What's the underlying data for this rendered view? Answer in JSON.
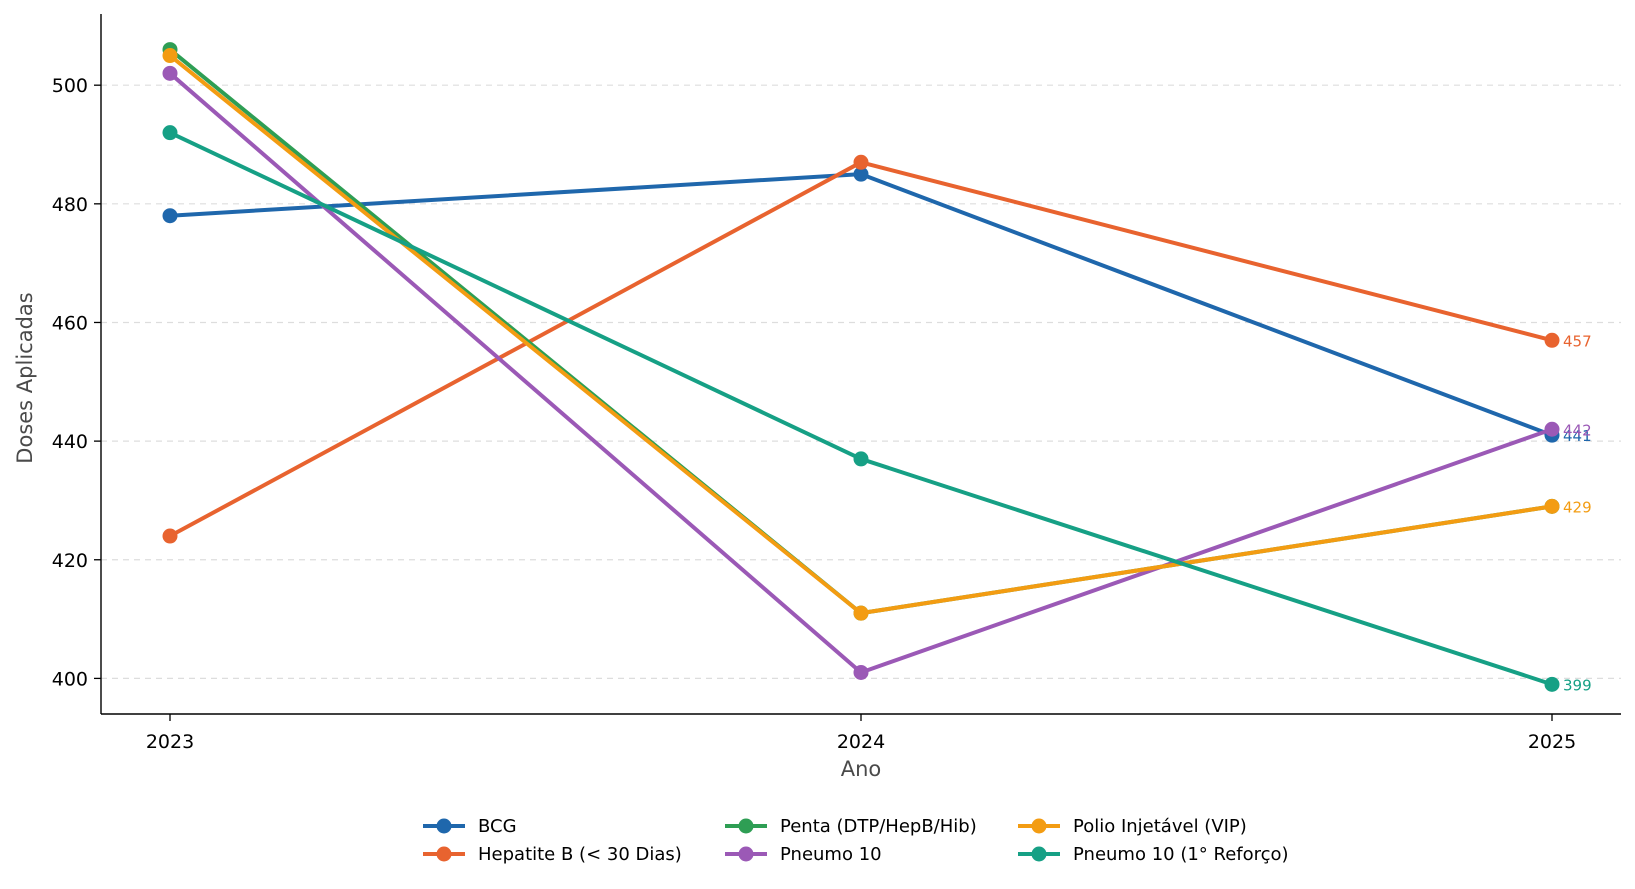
{
  "chart_data": {
    "type": "line",
    "title": "",
    "xlabel": "Ano",
    "ylabel": "Doses Aplicadas",
    "x": [
      "2023",
      "2024",
      "2025"
    ],
    "ylim": [
      394,
      512
    ],
    "yticks": [
      400,
      420,
      440,
      460,
      480,
      500
    ],
    "ytick_labels": [
      "400",
      "420",
      "440",
      "460",
      "480",
      "500"
    ],
    "grid": "horizontal-dashed",
    "legend_position": "bottom-center",
    "series": [
      {
        "name": "BCG",
        "values": [
          478,
          485,
          441
        ],
        "color": "#1f67ac",
        "end_label": "441"
      },
      {
        "name": "Hepatite B (< 30 Dias)",
        "values": [
          424,
          487,
          457
        ],
        "color": "#e8632f",
        "end_label": "457"
      },
      {
        "name": "Penta (DTP/HepB/Hib)",
        "values": [
          506,
          411,
          429
        ],
        "color": "#2e9e54",
        "end_label": ""
      },
      {
        "name": "Pneumo 10",
        "values": [
          502,
          401,
          442
        ],
        "color": "#9b59b6",
        "end_label": "442"
      },
      {
        "name": "Polio Injetável (VIP)",
        "values": [
          505,
          411,
          429
        ],
        "color": "#f39c12",
        "end_label": "429"
      },
      {
        "name": "Pneumo 10 (1° Reforço)",
        "values": [
          492,
          437,
          399
        ],
        "color": "#16a085",
        "end_label": "399"
      }
    ]
  }
}
